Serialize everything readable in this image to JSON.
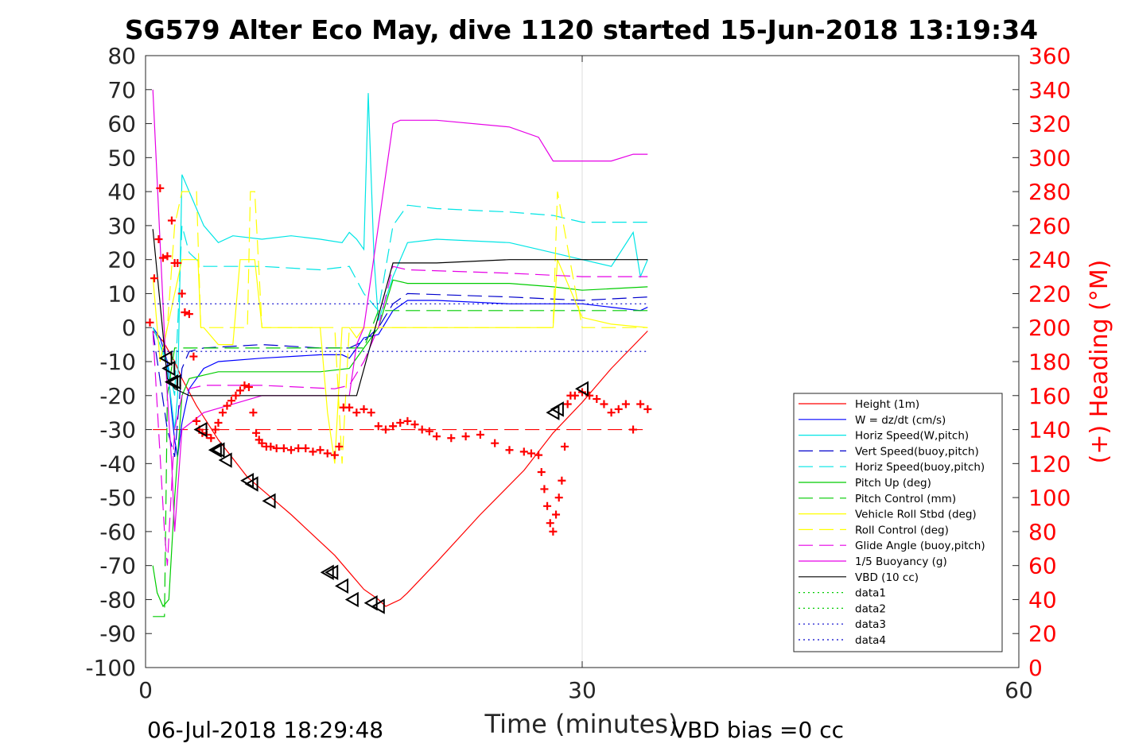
{
  "chart_data": {
    "type": "line",
    "title": "SG579 Alter Eco May, dive 1120 started 15-Jun-2018 13:19:34",
    "xlabel": "Time (minutes)",
    "ylabel": "",
    "y2label": "(+) Heading (°M)",
    "xlim": [
      0,
      60
    ],
    "ylim": [
      -100,
      80
    ],
    "y2lim": [
      0,
      360
    ],
    "xticks": [
      0,
      30,
      60
    ],
    "yticks": [
      80,
      70,
      60,
      50,
      40,
      30,
      20,
      10,
      0,
      -10,
      -20,
      -30,
      -40,
      -50,
      -60,
      -70,
      -80,
      -90,
      -100
    ],
    "y2ticks": [
      360,
      340,
      320,
      300,
      280,
      260,
      240,
      220,
      200,
      180,
      160,
      140,
      120,
      100,
      80,
      60,
      40,
      20,
      0
    ],
    "grid": "x only at 30",
    "legend_position": "lower-right",
    "footer_left": "06-Jul-2018 18:29:48",
    "footer_right": "VBD bias =0 cc",
    "series": [
      {
        "name": "Height (1m)",
        "color": "#ff0000",
        "style": "solid",
        "x": [
          0.5,
          1.2,
          2.0,
          2.5,
          3.5,
          5,
          7,
          10,
          13,
          14,
          15,
          16,
          16.5,
          17,
          17.5,
          18,
          20,
          23,
          26,
          28,
          30,
          32,
          34.5
        ],
        "y": [
          -1,
          -4,
          -10,
          -15,
          -23,
          -33,
          -44,
          -55,
          -67,
          -72,
          -77,
          -80,
          -82,
          -81,
          -80,
          -78,
          -69,
          -55,
          -42,
          -31,
          -22,
          -12,
          -1
        ]
      },
      {
        "name": "W = dz/dt (cm/s)",
        "color": "#0000ff",
        "style": "solid",
        "x": [
          0.5,
          1.0,
          1.5,
          1.8,
          2.0,
          2.2,
          2.5,
          3,
          4,
          5,
          8,
          12,
          13.5,
          14,
          15,
          16,
          17,
          18,
          20,
          25,
          28,
          30,
          32,
          34,
          34.5
        ],
        "y": [
          0,
          -3,
          -10,
          -25,
          -33,
          -38,
          -28,
          -18,
          -12,
          -10,
          -9,
          -8,
          -8,
          -9,
          -3,
          -2,
          5,
          8,
          8,
          7,
          7,
          7,
          6,
          5,
          6
        ]
      },
      {
        "name": "Horiz Speed(W,pitch)",
        "color": "#00e5e5",
        "style": "solid",
        "x": [
          0.5,
          1.0,
          1.5,
          2.0,
          2.2,
          2.5,
          3,
          4,
          5,
          6,
          8,
          10,
          12,
          13.5,
          14,
          14.5,
          15,
          15.3,
          15.7,
          16,
          17,
          18,
          20,
          25,
          28,
          30,
          32,
          33.5,
          34,
          34.5
        ],
        "y": [
          0,
          -5,
          -12,
          -30,
          -20,
          45,
          40,
          30,
          25,
          27,
          26,
          27,
          26,
          25,
          28,
          26,
          23,
          69,
          20,
          2,
          15,
          25,
          26,
          25,
          22,
          20,
          18,
          28,
          15,
          20
        ]
      },
      {
        "name": "Vert Speed(buoy,pitch)",
        "color": "#0000cc",
        "style": "dashed",
        "x": [
          0.5,
          1.5,
          2.0,
          2.5,
          3,
          4,
          8,
          12,
          14,
          15,
          16,
          17,
          18,
          25,
          30,
          34.5
        ],
        "y": [
          -1,
          -30,
          -38,
          -12,
          -7,
          -6,
          -5,
          -6,
          -6,
          -4,
          0,
          7,
          10,
          9,
          8,
          9
        ]
      },
      {
        "name": "Horiz Speed(buoy,pitch)",
        "color": "#00e5e5",
        "style": "dashed",
        "x": [
          0.5,
          1.5,
          2.0,
          2.5,
          3,
          4,
          8,
          12,
          14,
          15,
          16,
          17,
          18,
          20,
          25,
          28,
          30,
          34.5
        ],
        "y": [
          0,
          -10,
          -20,
          30,
          22,
          18,
          18,
          17,
          18,
          10,
          5,
          30,
          36,
          35,
          34,
          33,
          31,
          31
        ]
      },
      {
        "name": "Pitch Up (deg)",
        "color": "#00cc00",
        "style": "solid",
        "x": [
          0.5,
          0.8,
          1.2,
          1.6,
          2.0,
          2.5,
          3,
          4,
          5,
          6,
          8,
          12,
          14,
          15,
          16,
          17,
          18,
          20,
          25,
          28,
          30,
          34.5
        ],
        "y": [
          -70,
          -78,
          -82,
          -80,
          -50,
          -20,
          -15,
          -14,
          -13,
          -13,
          -13,
          -13,
          -12,
          -6,
          0,
          14,
          13,
          13,
          13,
          12,
          11,
          12
        ]
      },
      {
        "name": "Pitch Control (mm)",
        "color": "#00cc00",
        "style": "dashed",
        "x": [
          0.5,
          1.3,
          1.5,
          2.0,
          2.5,
          4,
          14,
          15,
          16,
          17,
          34.5
        ],
        "y": [
          -85,
          -85,
          -20,
          -6,
          -6,
          -6,
          -6,
          -6,
          5,
          5,
          5
        ]
      },
      {
        "name": "Vehicle Roll Stbd (deg)",
        "color": "#ffff00",
        "style": "solid",
        "x": [
          0.5,
          1.0,
          1.5,
          2.0,
          2.5,
          3,
          3.6,
          3.8,
          4,
          5,
          6,
          6.5,
          7,
          7.5,
          8,
          12,
          12.5,
          13,
          13.5,
          14,
          14.5,
          15,
          28,
          28.3,
          30,
          32,
          34.5
        ],
        "y": [
          15,
          -10,
          0,
          10,
          20,
          20,
          20,
          0,
          0,
          -5,
          -5,
          20,
          20,
          20,
          0,
          0,
          -25,
          -40,
          0,
          0,
          -3,
          0,
          0,
          20,
          3,
          1,
          0
        ]
      },
      {
        "name": "Roll Control (deg)",
        "color": "#ffff00",
        "style": "dashed",
        "x": [
          1.0,
          1.5,
          2.0,
          2.5,
          3.5,
          3.8,
          4,
          7,
          7.2,
          7.5,
          8,
          13,
          13.5,
          14,
          15,
          28,
          28.3,
          30,
          34.5
        ],
        "y": [
          -10,
          0,
          30,
          40,
          40,
          0,
          0,
          0,
          40,
          40,
          0,
          0,
          -40,
          0,
          0,
          0,
          40,
          0,
          0
        ]
      },
      {
        "name": "Glide Angle (buoy,pitch)",
        "color": "#e600e6",
        "style": "dashed",
        "x": [
          0.5,
          1.3,
          1.5,
          2.0,
          2.5,
          3,
          4,
          8,
          13,
          14,
          15,
          16,
          17,
          18,
          25,
          30,
          34.5
        ],
        "y": [
          -1,
          -60,
          -70,
          -30,
          -20,
          -18,
          -17,
          -17,
          -18,
          -17,
          -10,
          0,
          18,
          17,
          16,
          15,
          15
        ]
      },
      {
        "name": "1/5 Buoyancy (g)",
        "color": "#e600e6",
        "style": "solid",
        "x": [
          0.5,
          1.0,
          1.5,
          1.8,
          2.0,
          2.5,
          4,
          8,
          13,
          14,
          14.5,
          15,
          17,
          17.5,
          20,
          25,
          27,
          28,
          29,
          32,
          33.5,
          34.5
        ],
        "y": [
          70,
          25,
          -20,
          -40,
          -60,
          -30,
          -25,
          -20,
          -20,
          -20,
          -5,
          0,
          60,
          61,
          61,
          59,
          56,
          49,
          49,
          49,
          51,
          51
        ]
      },
      {
        "name": "VBD (10 cc)",
        "color": "#000000",
        "style": "solid",
        "x": [
          0.5,
          1.5,
          2.0,
          2.5,
          3,
          4,
          8,
          12,
          14,
          14.5,
          17,
          17.5,
          20,
          25,
          30,
          34.5
        ],
        "y": [
          29,
          -15,
          -18,
          -19,
          -20,
          -20,
          -20,
          -20,
          -20,
          -20,
          19,
          19,
          19,
          20,
          20,
          20
        ]
      },
      {
        "name": "data1",
        "color": "#00cc00",
        "style": "dotted",
        "x": [],
        "y": []
      },
      {
        "name": "data2",
        "color": "#00cc00",
        "style": "dotted",
        "x": [],
        "y": []
      },
      {
        "name": "data3",
        "color": "#0000cc",
        "style": "dotted",
        "x": [
          0.5,
          34.5
        ],
        "y": [
          7,
          7
        ]
      },
      {
        "name": "data4",
        "color": "#0000cc",
        "style": "dotted",
        "x": [
          0.5,
          34.5
        ],
        "y": [
          -7,
          -7
        ]
      }
    ],
    "reference_line": {
      "color": "#ff0000",
      "style": "dashed",
      "y": -30,
      "x": [
        0.5,
        34.5
      ]
    },
    "heading": {
      "color": "#ff0000",
      "marker": "+",
      "x": [
        0.3,
        0.6,
        0.9,
        1.0,
        1.2,
        1.5,
        1.8,
        2.0,
        2.2,
        2.5,
        2.7,
        3.0,
        3.3,
        3.5,
        3.7,
        3.9,
        4.2,
        4.5,
        4.8,
        5.0,
        5.3,
        5.6,
        5.9,
        6.2,
        6.5,
        6.8,
        7.1,
        7.4,
        7.6,
        7.8,
        8.0,
        8.3,
        8.6,
        9,
        9.5,
        10,
        10.5,
        11,
        11.5,
        12,
        12.5,
        13,
        13.3,
        13.6,
        14,
        14.5,
        15,
        15.5,
        16,
        16.5,
        17,
        17.5,
        18,
        18.5,
        19,
        19.5,
        20,
        21,
        22,
        23,
        24,
        25,
        26,
        26.5,
        27,
        27.2,
        27.4,
        27.6,
        27.8,
        28.0,
        28.2,
        28.4,
        28.6,
        28.8,
        29.0,
        29.2,
        29.5,
        30,
        30.5,
        31,
        31.5,
        32,
        32.5,
        33,
        33.5,
        34,
        34.5
      ],
      "y": [
        203,
        229,
        252,
        282,
        241,
        242,
        263,
        238,
        238,
        220,
        209,
        208,
        183,
        145,
        140,
        138,
        137,
        135,
        140,
        144,
        150,
        154,
        157,
        160,
        163,
        166,
        165,
        150,
        138,
        134,
        132,
        130,
        130,
        129,
        129,
        128,
        129,
        129,
        127,
        128,
        126,
        125,
        130,
        153,
        153,
        150,
        152,
        150,
        142,
        140,
        142,
        144,
        145,
        143,
        140,
        139,
        136,
        135,
        136,
        137,
        132,
        128,
        127,
        126,
        125,
        115,
        105,
        95,
        85,
        80,
        90,
        100,
        110,
        130,
        155,
        160,
        160,
        162,
        160,
        158,
        155,
        150,
        152,
        155,
        140,
        155,
        152
      ]
    },
    "triangles": {
      "color": "#000000",
      "marker": "triangle",
      "x": [
        1.4,
        1.6,
        1.8,
        2.0,
        3.8,
        4.8,
        5.0,
        5.5,
        7.0,
        7.3,
        8.5,
        12.5,
        12.8,
        13.5,
        14.2,
        15.5,
        16.0,
        28.0,
        28.3,
        30.0
      ],
      "y": [
        -9,
        -12,
        -16,
        -16,
        -30,
        -36,
        -36,
        -39,
        -45,
        -46,
        -51,
        -72,
        -72,
        -76,
        -80,
        -81,
        -82,
        -25,
        -24,
        -18
      ]
    }
  }
}
